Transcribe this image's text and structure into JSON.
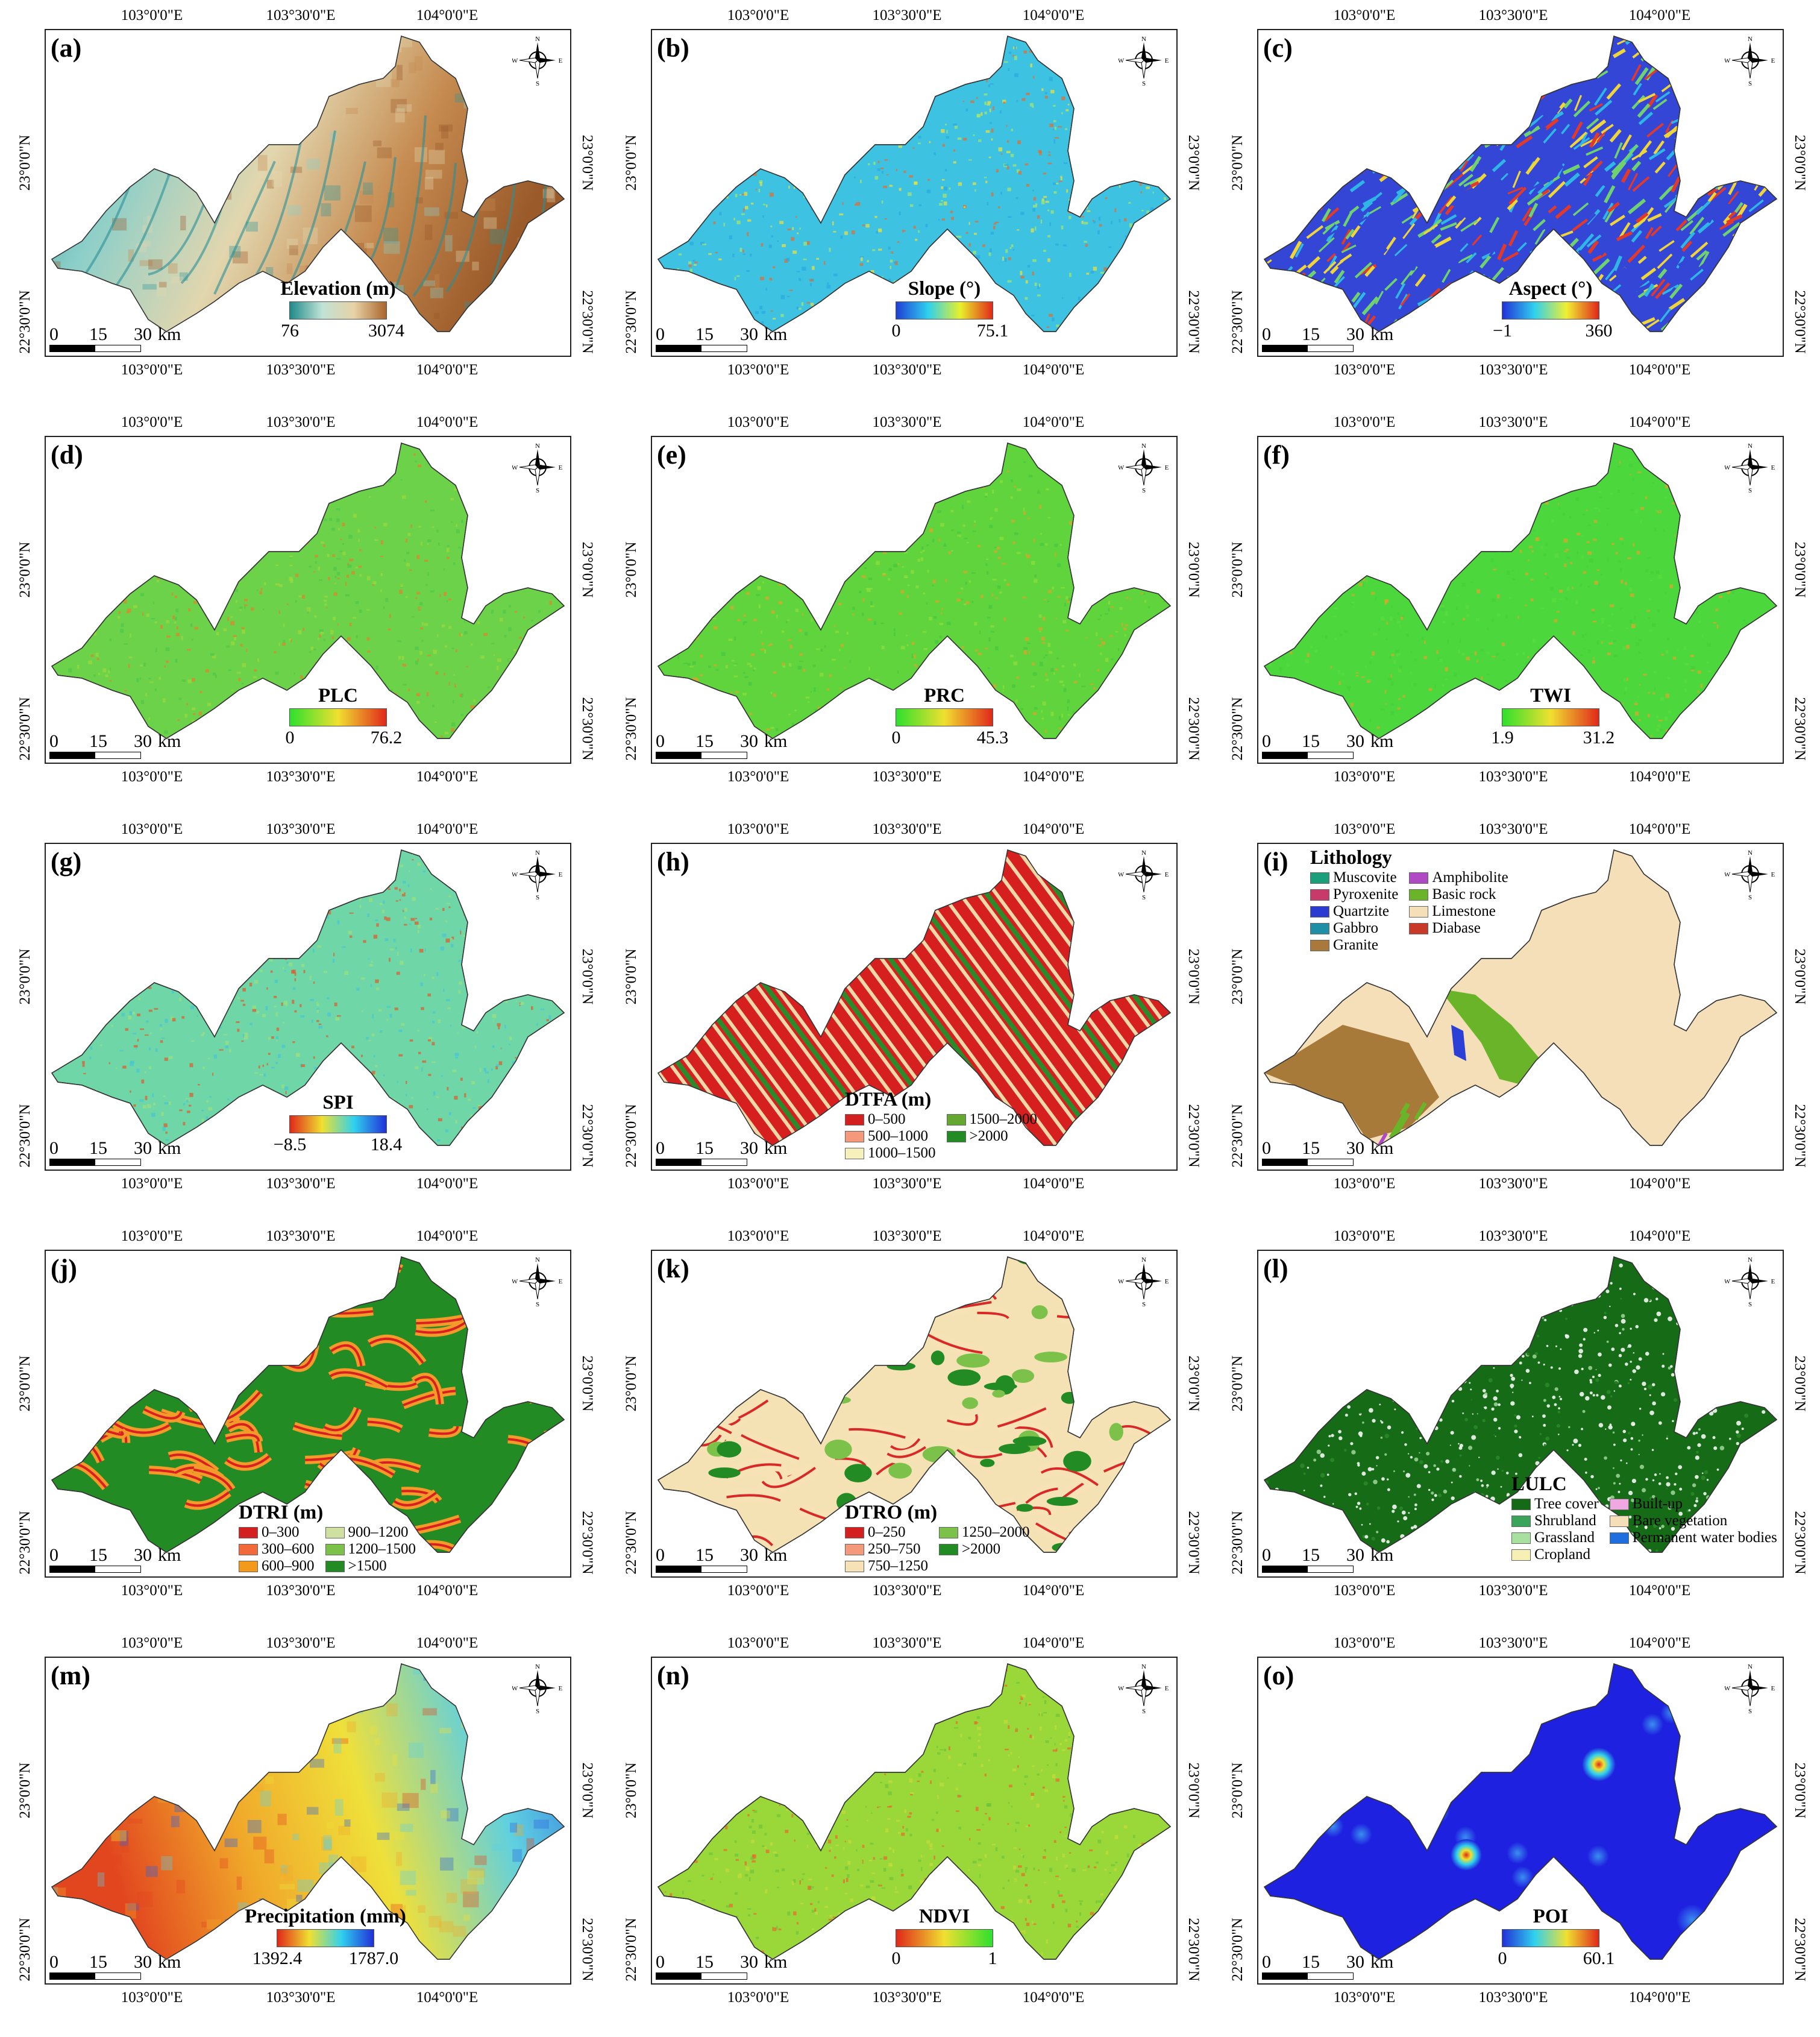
{
  "coords": {
    "lon_ticks": [
      "103°0'0\"E",
      "103°30'0\"E",
      "104°0'0\"E"
    ],
    "lat_ticks": [
      "23°0'0\"N",
      "22°30'0\"N"
    ]
  },
  "compass": {
    "n": "N",
    "s": "S",
    "e": "E",
    "w": "W",
    "icon": "compass-rose-icon"
  },
  "scale_bar": {
    "labels": [
      "0",
      "15",
      "30"
    ],
    "unit": "km"
  },
  "panels": [
    {
      "id": "a",
      "label": "(a)",
      "legend_title": "Elevation (m)",
      "legend_min": "76",
      "legend_max": "3074",
      "ramp": [
        "#1f8a8a",
        "#bfe3d6",
        "#e7d2a6",
        "#a9662d"
      ],
      "map_colors": [
        "#2d9499",
        "#8ccfc9",
        "#e2d6ae",
        "#c58a4f",
        "#9a5a2a"
      ]
    },
    {
      "id": "b",
      "label": "(b)",
      "legend_title": "Slope (°)",
      "legend_min": "0",
      "legend_max": "75.1",
      "ramp": [
        "#1f3fd6",
        "#2fd1ee",
        "#e8f02a",
        "#e32a1a"
      ],
      "map_colors": [
        "#3ec2e2",
        "#2aa8e0",
        "#a6e86a",
        "#f0e13a",
        "#e56b2c"
      ]
    },
    {
      "id": "c",
      "label": "(c)",
      "legend_title": "Aspect (°)",
      "legend_min": "−1",
      "legend_max": "360",
      "ramp": [
        "#2130d8",
        "#2fd1ee",
        "#f1ef32",
        "#e0261a"
      ],
      "map_colors": [
        "#3446d6",
        "#e23a2a",
        "#f0d53a",
        "#6fd16f",
        "#2fb6e6"
      ]
    },
    {
      "id": "d",
      "label": "(d)",
      "legend_title": "PLC",
      "legend_min": "0",
      "legend_max": "76.2",
      "ramp": [
        "#2ee02e",
        "#f0e030",
        "#e0281a"
      ],
      "map_colors": [
        "#6cd24a",
        "#9cd83a",
        "#e2832a",
        "#4fc64a"
      ]
    },
    {
      "id": "e",
      "label": "(e)",
      "legend_title": "PRC",
      "legend_min": "0",
      "legend_max": "45.3",
      "ramp": [
        "#2ee02e",
        "#f0e030",
        "#e0281a"
      ],
      "map_colors": [
        "#5fd43c",
        "#8ede3a",
        "#e0a42a",
        "#46c640"
      ]
    },
    {
      "id": "f",
      "label": "(f)",
      "legend_title": "TWI",
      "legend_min": "1.9",
      "legend_max": "31.2",
      "ramp": [
        "#2ee02e",
        "#f0e030",
        "#e0281a"
      ],
      "map_colors": [
        "#4cd83c",
        "#5ddc3c",
        "#e2a42a",
        "#46d03a"
      ]
    },
    {
      "id": "g",
      "label": "(g)",
      "legend_title": "SPI",
      "legend_min": "−8.5",
      "legend_max": "18.4",
      "ramp": [
        "#e0281a",
        "#f0e030",
        "#2fd1ee",
        "#2130d8"
      ],
      "map_colors": [
        "#6fd6a8",
        "#9be07c",
        "#46c6d6",
        "#e05a2a"
      ]
    },
    {
      "id": "h",
      "label": "(h)",
      "legend_title": "DTFA (m)",
      "legend_min": "",
      "legend_max": "",
      "ramp": [],
      "map_colors": [
        "#d61f1f",
        "#f2d7a8",
        "#2b8a2b",
        "#f5f2c4"
      ],
      "classes": [
        {
          "name": "0–500",
          "color": "#d31f1f"
        },
        {
          "name": "500–1000",
          "color": "#f49a7a"
        },
        {
          "name": "1000–1500",
          "color": "#f6f0bc"
        },
        {
          "name": "1500–2000",
          "color": "#64a831"
        },
        {
          "name": ">2000",
          "color": "#238b23"
        }
      ]
    },
    {
      "id": "i",
      "label": "(i)",
      "legend_title": "Lithology",
      "legend_min": "",
      "legend_max": "",
      "ramp": [],
      "map_colors": [
        "#f5dfb9",
        "#a87a3a",
        "#6ab42a",
        "#2b3fd6"
      ],
      "classes": [
        {
          "name": "Muscovite",
          "color": "#1b9e7a"
        },
        {
          "name": "Pyroxenite",
          "color": "#c83a6a"
        },
        {
          "name": "Quartzite",
          "color": "#2b3bd1"
        },
        {
          "name": "Gabbro",
          "color": "#1f8fa6"
        },
        {
          "name": "Granite",
          "color": "#a8793a"
        },
        {
          "name": "Amphibolite",
          "color": "#b04ac4"
        },
        {
          "name": "Basic rock",
          "color": "#6ab42a"
        },
        {
          "name": "Limestone",
          "color": "#f5dfb9"
        },
        {
          "name": "Diabase",
          "color": "#c8392a"
        }
      ]
    },
    {
      "id": "j",
      "label": "(j)",
      "legend_title": "DTRI (m)",
      "legend_min": "",
      "legend_max": "",
      "ramp": [],
      "map_colors": [
        "#238b23",
        "#d82020",
        "#f39a2a",
        "#cfe0a0"
      ],
      "classes": [
        {
          "name": "0–300",
          "color": "#d31f1f"
        },
        {
          "name": "300–600",
          "color": "#f26a3a"
        },
        {
          "name": "600–900",
          "color": "#f39a1a"
        },
        {
          "name": "900–1200",
          "color": "#cfe0a0"
        },
        {
          "name": "1200–1500",
          "color": "#7cc24a"
        },
        {
          "name": ">1500",
          "color": "#238b23"
        }
      ]
    },
    {
      "id": "k",
      "label": "(k)",
      "legend_title": "DTRO (m)",
      "legend_min": "",
      "legend_max": "",
      "ramp": [],
      "map_colors": [
        "#f5e2b4",
        "#d82828",
        "#7cc24a",
        "#238b23"
      ],
      "classes": [
        {
          "name": "0–250",
          "color": "#d31f1f"
        },
        {
          "name": "250–750",
          "color": "#f49a7a"
        },
        {
          "name": "750–1250",
          "color": "#f6e2b4"
        },
        {
          "name": "1250–2000",
          "color": "#7cc24a"
        },
        {
          "name": ">2000",
          "color": "#238b23"
        }
      ]
    },
    {
      "id": "l",
      "label": "(l)",
      "legend_title": "LULC",
      "legend_min": "",
      "legend_max": "",
      "ramp": [],
      "map_colors": [
        "#166b16",
        "#2a8a2a",
        "#9fd69a",
        "#ffffff"
      ],
      "classes": [
        {
          "name": "Tree cover",
          "color": "#156b15"
        },
        {
          "name": "Shrubland",
          "color": "#3aa55a"
        },
        {
          "name": "Grassland",
          "color": "#a8e0a0"
        },
        {
          "name": "Cropland",
          "color": "#f6f0b4"
        },
        {
          "name": "Built-up",
          "color": "#f0a8e0"
        },
        {
          "name": "Bare vegetation",
          "color": "#f5dfb9"
        },
        {
          "name": "Permanent water bodies",
          "color": "#1e6ee0"
        }
      ]
    },
    {
      "id": "m",
      "label": "(m)",
      "legend_title": "Precipitation (mm)",
      "legend_min": "1392.4",
      "legend_max": "1787.0",
      "ramp": [
        "#e0281a",
        "#f0e030",
        "#2fd1ee",
        "#2130d8"
      ],
      "map_colors": [
        "#e2461f",
        "#f0a82a",
        "#efe03a",
        "#5fd0e0",
        "#2a62e0"
      ]
    },
    {
      "id": "n",
      "label": "(n)",
      "legend_title": "NDVI",
      "legend_min": "0",
      "legend_max": "1",
      "ramp": [
        "#e0281a",
        "#f0e030",
        "#2ee02e"
      ],
      "map_colors": [
        "#9ad83a",
        "#c8dc3a",
        "#e86a2a",
        "#6cc43a"
      ]
    },
    {
      "id": "o",
      "label": "(o)",
      "legend_title": "POI",
      "legend_min": "0",
      "legend_max": "60.1",
      "ramp": [
        "#2130d8",
        "#2fd1ee",
        "#f0e030",
        "#e0281a"
      ],
      "map_colors": [
        "#1e22e0",
        "#3a8ef0",
        "#2fd1ee",
        "#f0e030",
        "#e0281a"
      ]
    }
  ]
}
